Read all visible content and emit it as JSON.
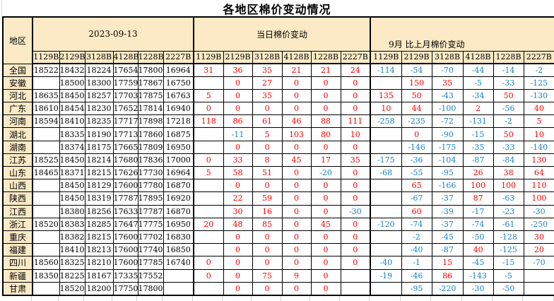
{
  "title": "各地区棉价变动情况",
  "colors": {
    "positive": "#FF0000",
    "negative": "#1E82C6",
    "header_bg": "#FCEAC6",
    "table_border": "#000000",
    "outside_gridline": "#CFCFCF"
  },
  "header": {
    "region_label": "地区",
    "groups": [
      "2023-09-13",
      "当日棉价变动",
      "9月 比上月棉价变动"
    ],
    "grade_codes": [
      "1129B",
      "2129B",
      "3128B",
      "4128B",
      "1228B",
      "2227B"
    ]
  },
  "rows": [
    {
      "region": "全国",
      "prices": [
        "18522",
        "18432",
        "18224",
        "17654",
        "17800",
        "16964"
      ],
      "daily": [
        "31",
        "36",
        "35",
        "21",
        "21",
        "24"
      ],
      "monthly": [
        "-114",
        "-54",
        "-70",
        "-44",
        "-14",
        "-2"
      ]
    },
    {
      "region": "安徽",
      "prices": [
        "",
        "18500",
        "18300",
        "17759",
        "17867",
        "16750"
      ],
      "daily": [
        "",
        "0",
        "27",
        "0",
        "0",
        "0"
      ],
      "monthly": [
        "",
        "150",
        "35",
        "-5",
        "-33",
        "-125"
      ]
    },
    {
      "region": "河北",
      "prices": [
        "18635",
        "18450",
        "18257",
        "17703",
        "17875",
        "16763"
      ],
      "daily": [
        "5",
        "0",
        "35",
        "0",
        "0",
        "0"
      ],
      "monthly": [
        "135",
        "50",
        "-43",
        "-34",
        "50",
        "-130"
      ]
    },
    {
      "region": "广东",
      "prices": [
        "18610",
        "18454",
        "18230",
        "17652",
        "17814",
        "16940"
      ],
      "daily": [
        "0",
        "0",
        "0",
        "0",
        "0",
        "0"
      ],
      "monthly": [
        "10",
        "44",
        "-100",
        "2",
        "-56",
        "40"
      ]
    },
    {
      "region": "河南",
      "prices": [
        "18594",
        "18410",
        "18235",
        "17717",
        "17898",
        "17218"
      ],
      "daily": [
        "118",
        "86",
        "61",
        "46",
        "88",
        "111"
      ],
      "monthly": [
        "-258",
        "-235",
        "-72",
        "-131",
        "-2",
        "5"
      ]
    },
    {
      "region": "湖北",
      "prices": [
        "",
        "18335",
        "18190",
        "17713",
        "17860",
        "16875"
      ],
      "daily": [
        "",
        "-11",
        "5",
        "103",
        "80",
        "10"
      ],
      "monthly": [
        "",
        "0",
        "-90",
        "-15",
        "50",
        "10"
      ]
    },
    {
      "region": "湖南",
      "prices": [
        "",
        "18374",
        "18175",
        "17665",
        "17809",
        "16950"
      ],
      "daily": [
        "",
        "0",
        "0",
        "0",
        "0",
        "0"
      ],
      "monthly": [
        "",
        "-146",
        "-175",
        "-35",
        "-33",
        "-140"
      ]
    },
    {
      "region": "江苏",
      "prices": [
        "18525",
        "18450",
        "18214",
        "17680",
        "17836",
        "17000"
      ],
      "daily": [
        "0",
        "33",
        "8",
        "45",
        "17",
        "35"
      ],
      "monthly": [
        "-175",
        "-36",
        "-104",
        "-87",
        "-84",
        "130"
      ]
    },
    {
      "region": "山东",
      "prices": [
        "18465",
        "18371",
        "18215",
        "17626",
        "17730",
        "16964"
      ],
      "daily": [
        "5",
        "58",
        "51",
        "0",
        "-20",
        "0"
      ],
      "monthly": [
        "-68",
        "-55",
        "-95",
        "26",
        "38",
        "64"
      ]
    },
    {
      "region": "山西",
      "prices": [
        "",
        "18450",
        "18129",
        "17600",
        "17780",
        "16870"
      ],
      "daily": [
        "",
        "0",
        "0",
        "0",
        "0",
        "0"
      ],
      "monthly": [
        "",
        "65",
        "-166",
        "100",
        "100",
        "110"
      ]
    },
    {
      "region": "陕西",
      "prices": [
        "",
        "18450",
        "18319",
        "17787",
        "17895",
        "16920"
      ],
      "daily": [
        "",
        "22",
        "59",
        "0",
        "0",
        "0"
      ],
      "monthly": [
        "",
        "-67",
        "-37",
        "87",
        "-63",
        "100"
      ]
    },
    {
      "region": "江西",
      "prices": [
        "",
        "18380",
        "18256",
        "17633",
        "17787",
        "16870"
      ],
      "daily": [
        "",
        "30",
        "16",
        "0",
        "0",
        "-30"
      ],
      "monthly": [
        "",
        "60",
        "-39",
        "-17",
        "-23",
        "-30"
      ]
    },
    {
      "region": "浙江",
      "prices": [
        "18520",
        "18383",
        "18285",
        "17647",
        "17775",
        "16950"
      ],
      "daily": [
        "20",
        "48",
        "85",
        "0",
        "45",
        "0"
      ],
      "monthly": [
        "-120",
        "-74",
        "-37",
        "-74",
        "-61",
        "-250"
      ]
    },
    {
      "region": "重庆",
      "prices": [
        "",
        "18382",
        "18215",
        "17600",
        "17702",
        "16830"
      ],
      "daily": [
        "",
        "0",
        "0",
        "0",
        "0",
        "0"
      ],
      "monthly": [
        "",
        "-2",
        "-45",
        "-50",
        "-128",
        "30"
      ]
    },
    {
      "region": "福建",
      "prices": [
        "",
        "18410",
        "18213",
        "17600",
        "17740",
        "16850"
      ],
      "daily": [
        "",
        "0",
        "0",
        "0",
        "0",
        "0"
      ],
      "monthly": [
        "",
        "-40",
        "-87",
        "40",
        "-125",
        "20"
      ]
    },
    {
      "region": "四川",
      "prices": [
        "18560",
        "18325",
        "18210",
        "17600",
        "17785",
        "16740"
      ],
      "daily": [
        "0",
        "0",
        "0",
        "0",
        "0",
        "0"
      ],
      "monthly": [
        "-40",
        "-1",
        "15",
        "-45",
        "-15",
        "-70"
      ]
    },
    {
      "region": "新疆",
      "prices": [
        "18350",
        "18225",
        "18167",
        "17335",
        "17552",
        ""
      ],
      "daily": [
        "0",
        "0",
        "75",
        "9",
        "0",
        ""
      ],
      "monthly": [
        "-19",
        "-46",
        "86",
        "-143",
        "-5",
        ""
      ]
    },
    {
      "region": "甘肃",
      "prices": [
        "",
        "18520",
        "18200",
        "17750",
        "17800",
        ""
      ],
      "daily": [
        "",
        "0",
        "0",
        "0",
        "0",
        ""
      ],
      "monthly": [
        "",
        "-95",
        "-220",
        "-30",
        "-50",
        ""
      ]
    }
  ]
}
